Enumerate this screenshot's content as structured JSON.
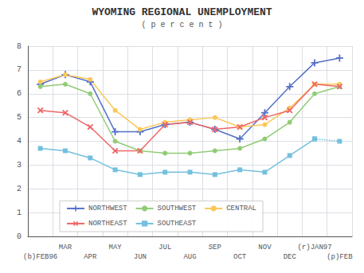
{
  "chart_data": {
    "type": "line",
    "title": "WYOMING REGIONAL UNEMPLOYMENT",
    "subtitle": "( p e r c e n t )",
    "categories": [
      "(b)FEB96",
      "MAR",
      "APR",
      "MAY",
      "JUN",
      "JUL",
      "AUG",
      "SEP",
      "OCT",
      "NOV",
      "DEC",
      "(r)JAN97",
      "(p)FEB"
    ],
    "series": [
      {
        "name": "NORTHWEST",
        "values": [
          6.4,
          6.8,
          6.5,
          4.4,
          4.4,
          4.7,
          4.8,
          4.5,
          4.1,
          5.2,
          6.3,
          7.3,
          7.5
        ],
        "marker": "plus",
        "line_style": "solid"
      },
      {
        "name": "SOUTHWEST",
        "values": [
          6.3,
          6.4,
          6.0,
          4.0,
          3.6,
          3.5,
          3.5,
          3.6,
          3.7,
          4.1,
          4.8,
          6.0,
          6.3
        ],
        "marker": "circle",
        "line_style": "solid"
      },
      {
        "name": "CENTRAL",
        "values": [
          6.5,
          6.8,
          6.6,
          5.3,
          4.5,
          4.8,
          4.9,
          5.0,
          4.6,
          4.7,
          5.4,
          6.4,
          6.4
        ],
        "marker": "circle",
        "line_style": "solid"
      },
      {
        "name": "NORTHEAST",
        "values": [
          5.3,
          5.2,
          4.6,
          3.6,
          3.6,
          4.7,
          4.8,
          4.5,
          4.6,
          5.0,
          5.3,
          6.4,
          6.3
        ],
        "marker": "x",
        "line_style": "solid"
      },
      {
        "name": "SOUTHEAST",
        "values": [
          3.7,
          3.6,
          3.3,
          2.8,
          2.6,
          2.7,
          2.7,
          2.6,
          2.8,
          2.7,
          3.4,
          4.1,
          null
        ],
        "marker": "square",
        "line_style": "solid"
      },
      {
        "values": [
          null,
          null,
          null,
          null,
          null,
          null,
          null,
          null,
          null,
          null,
          null,
          4.1,
          4.0
        ],
        "marker": "square",
        "line_style": "dotted"
      }
    ],
    "ylim": [
      0,
      8
    ],
    "yticks": [
      0,
      1,
      2,
      3,
      4,
      5,
      6,
      7,
      8
    ],
    "grid": true,
    "legend": "lower left"
  }
}
